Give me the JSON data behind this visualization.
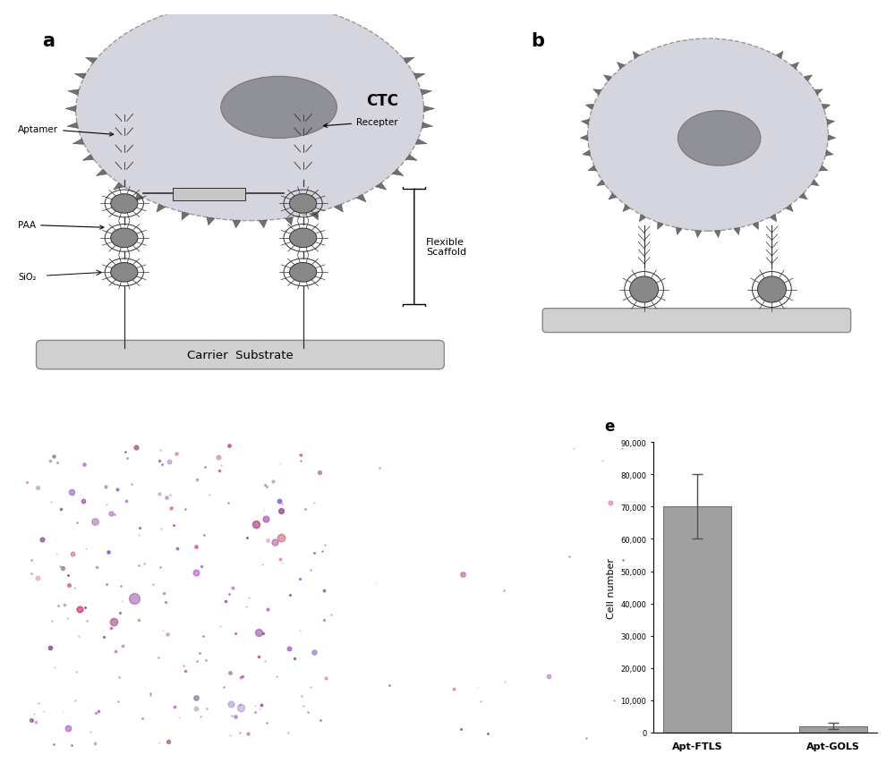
{
  "bar_values": [
    70000,
    2000
  ],
  "bar_errors": [
    10000,
    1000
  ],
  "bar_labels": [
    "Apt-FTLS",
    "Apt-GOLS"
  ],
  "bar_color": "#a0a0a0",
  "ylabel_bar": "Cell number",
  "ylim_bar": [
    0,
    90000
  ],
  "yticks_bar": [
    0,
    10000,
    20000,
    30000,
    40000,
    50000,
    60000,
    70000,
    80000,
    90000
  ],
  "cell_outer_color": "#d5d5df",
  "cell_inner_color": "#b8b8c8",
  "nucleus_color": "#909098",
  "scaffold_color": "#c0c0c0",
  "substrate_color": "#d0d0d0",
  "dark_img_bg": "#080808",
  "spike_color": "#707070",
  "np_color": "#888888",
  "line_color": "#303030",
  "bg_white": "#ffffff"
}
